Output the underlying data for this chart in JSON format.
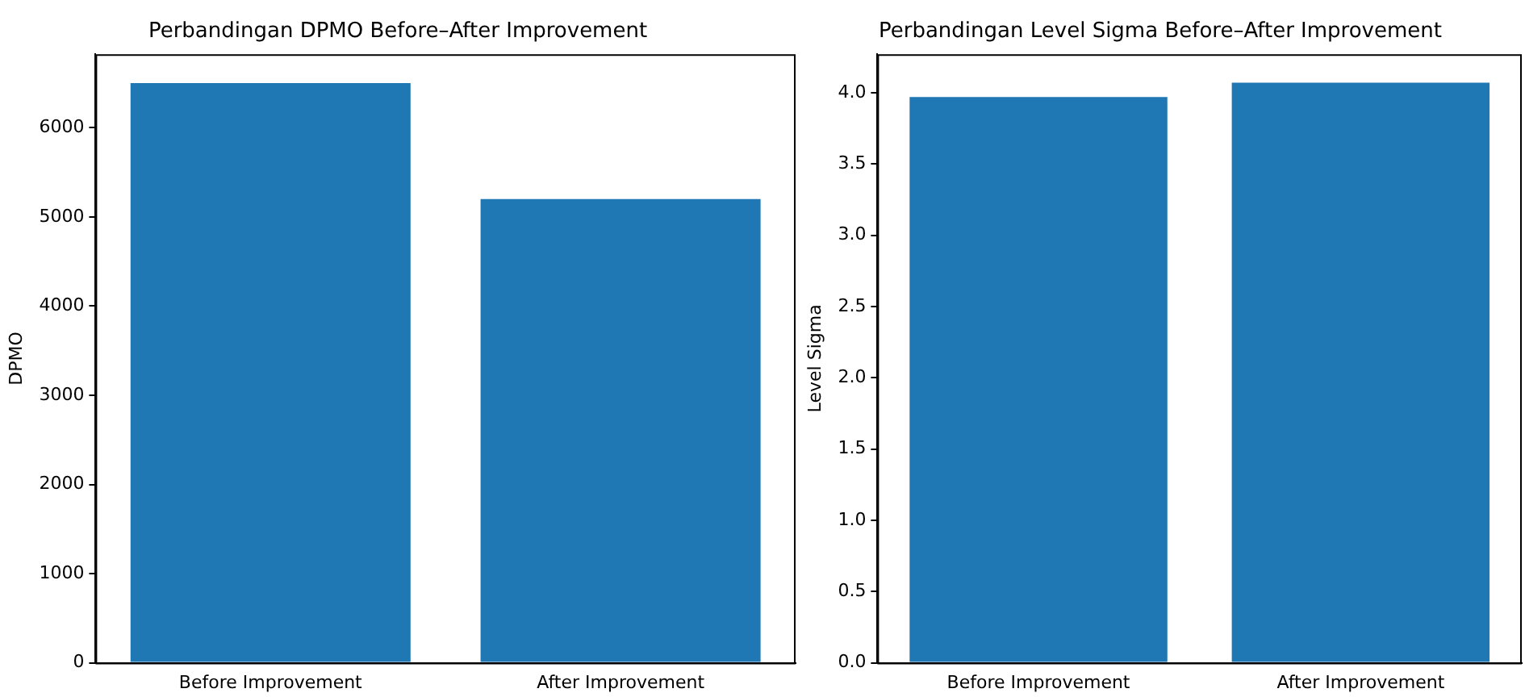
{
  "chart_data": [
    {
      "type": "bar",
      "title": "Perbandingan DPMO Before–After Improvement",
      "ylabel": "DPMO",
      "categories": [
        "Before Improvement",
        "After Improvement"
      ],
      "values": [
        6500,
        5200
      ],
      "color": "#1f77b4",
      "ylim": [
        0,
        6825
      ],
      "yticks": [
        0,
        1000,
        2000,
        3000,
        4000,
        5000,
        6000
      ],
      "grid": false
    },
    {
      "type": "bar",
      "title": "Perbandingan Level Sigma Before–After Improvement",
      "ylabel": "Level Sigma",
      "categories": [
        "Before Improvement",
        "After Improvement"
      ],
      "values": [
        3.97,
        4.07
      ],
      "color": "#1f77b4",
      "ylim": [
        0,
        4.27
      ],
      "yticks": [
        {
          "value": 0,
          "label": "0.0"
        },
        {
          "value": 0.5,
          "label": "0.5"
        },
        {
          "value": 1,
          "label": "1.0"
        },
        {
          "value": 1.5,
          "label": "1.5"
        },
        {
          "value": 2,
          "label": "2.0"
        },
        {
          "value": 2.5,
          "label": "2.5"
        },
        {
          "value": 3,
          "label": "3.0"
        },
        {
          "value": 3.5,
          "label": "3.5"
        },
        {
          "value": 4,
          "label": "4.0"
        }
      ],
      "grid": false
    }
  ]
}
